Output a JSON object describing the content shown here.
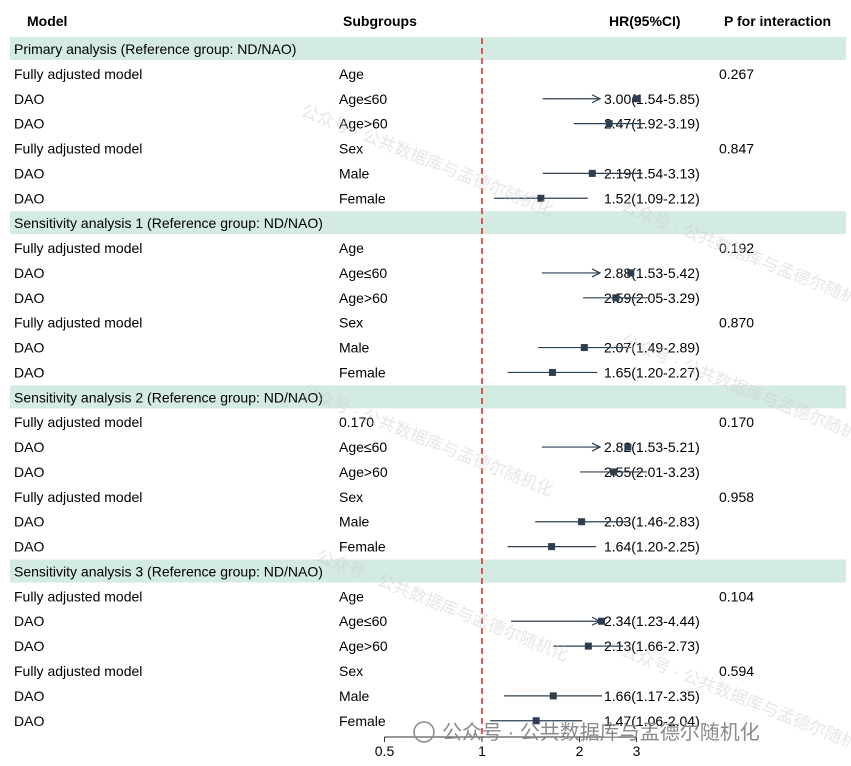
{
  "headers": {
    "model": "Model",
    "subgroups": "Subgroups",
    "hr": "HR(95%CI)",
    "p": "P for interaction"
  },
  "colors": {
    "section_band": "#d3ebe0",
    "marker": "#2d3e50",
    "reference_line": "#e0302b",
    "text": "#111111"
  },
  "watermark": "公众号 · 公共数据库与孟德尔随机化",
  "chart_data": {
    "type": "forest",
    "x_axis": {
      "ticks": [
        0.5,
        1,
        2,
        3
      ],
      "tick_labels": [
        "0.5",
        "1",
        "2",
        "3"
      ],
      "reference_value": 1,
      "reference_line_style": "dashed"
    },
    "rows": [
      {
        "section": "Primary analysis (Reference group: ND/NAO)"
      },
      {
        "model": "Fully adjusted model",
        "subgroup": "Age",
        "hr": "",
        "p": "0.267"
      },
      {
        "model": "DAO",
        "subgroup": "Age≤60",
        "hr": "3.00(1.54-5.85)",
        "p": "",
        "est": 3.0,
        "lo": 1.54,
        "hi": 5.85,
        "arrow": true
      },
      {
        "model": "DAO",
        "subgroup": "Age>60",
        "hr": "2.47(1.92-3.19)",
        "p": "",
        "est": 2.47,
        "lo": 1.92,
        "hi": 3.19
      },
      {
        "model": "Fully adjusted model",
        "subgroup": "Sex",
        "hr": "",
        "p": "0.847"
      },
      {
        "model": "DAO",
        "subgroup": "Male",
        "hr": "2.19(1.54-3.13)",
        "p": "",
        "est": 2.19,
        "lo": 1.54,
        "hi": 3.13
      },
      {
        "model": "DAO",
        "subgroup": "Female",
        "hr": "1.52(1.09-2.12)",
        "p": "",
        "est": 1.52,
        "lo": 1.09,
        "hi": 2.12
      },
      {
        "section": "Sensitivity analysis 1 (Reference group: ND/NAO)"
      },
      {
        "model": "Fully adjusted model",
        "subgroup": "Age",
        "hr": "",
        "p": "0.192"
      },
      {
        "model": "DAO",
        "subgroup": "Age≤60",
        "hr": "2.88(1.53-5.42)",
        "p": "",
        "est": 2.88,
        "lo": 1.53,
        "hi": 5.42,
        "arrow": true
      },
      {
        "model": "DAO",
        "subgroup": "Age>60",
        "hr": "2.59(2.05-3.29)",
        "p": "",
        "est": 2.59,
        "lo": 2.05,
        "hi": 3.29
      },
      {
        "model": "Fully adjusted model",
        "subgroup": "Sex",
        "hr": "",
        "p": "0.870"
      },
      {
        "model": "DAO",
        "subgroup": "Male",
        "hr": "2.07(1.49-2.89)",
        "p": "",
        "est": 2.07,
        "lo": 1.49,
        "hi": 2.89
      },
      {
        "model": "DAO",
        "subgroup": "Female",
        "hr": "1.65(1.20-2.27)",
        "p": "",
        "est": 1.65,
        "lo": 1.2,
        "hi": 2.27
      },
      {
        "section": "Sensitivity analysis 2 (Reference group: ND/NAO)"
      },
      {
        "model": "Fully adjusted model",
        "subgroup": "0.170",
        "hr": "",
        "p": "0.170"
      },
      {
        "model": "DAO",
        "subgroup": "Age≤60",
        "hr": "2.82(1.53-5.21)",
        "p": "",
        "est": 2.82,
        "lo": 1.53,
        "hi": 5.21,
        "arrow": true
      },
      {
        "model": "DAO",
        "subgroup": "Age>60",
        "hr": "2.55(2.01-3.23)",
        "p": "",
        "est": 2.55,
        "lo": 2.01,
        "hi": 3.23
      },
      {
        "model": "Fully adjusted model",
        "subgroup": "Sex",
        "hr": "",
        "p": "0.958"
      },
      {
        "model": "DAO",
        "subgroup": "Male",
        "hr": "2.03(1.46-2.83)",
        "p": "",
        "est": 2.03,
        "lo": 1.46,
        "hi": 2.83
      },
      {
        "model": "DAO",
        "subgroup": "Female",
        "hr": "1.64(1.20-2.25)",
        "p": "",
        "est": 1.64,
        "lo": 1.2,
        "hi": 2.25
      },
      {
        "section": "Sensitivity analysis 3 (Reference group: ND/NAO)"
      },
      {
        "model": "Fully adjusted model",
        "subgroup": "Age",
        "hr": "",
        "p": "0.104"
      },
      {
        "model": "DAO",
        "subgroup": "Age≤60",
        "hr": "2.34(1.23-4.44)",
        "p": "",
        "est": 2.34,
        "lo": 1.23,
        "hi": 4.44,
        "arrow": true
      },
      {
        "model": "DAO",
        "subgroup": "Age>60",
        "hr": "2.13(1.66-2.73)",
        "p": "",
        "est": 2.13,
        "lo": 1.66,
        "hi": 2.73
      },
      {
        "model": "Fully adjusted model",
        "subgroup": "Sex",
        "hr": "",
        "p": "0.594"
      },
      {
        "model": "DAO",
        "subgroup": "Male",
        "hr": "1.66(1.17-2.35)",
        "p": "",
        "est": 1.66,
        "lo": 1.17,
        "hi": 2.35
      },
      {
        "model": "DAO",
        "subgroup": "Female",
        "hr": "1.47(1.06-2.04)",
        "p": "",
        "est": 1.47,
        "lo": 1.06,
        "hi": 2.04
      }
    ]
  }
}
